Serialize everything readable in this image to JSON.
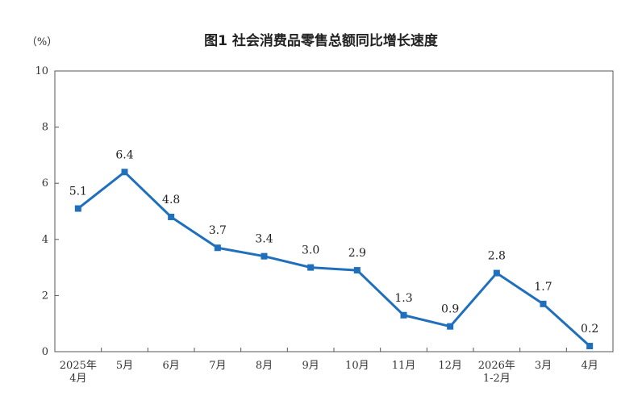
{
  "chart_data": {
    "type": "line",
    "title": "图1  社会消费品零售总额同比增长速度",
    "ylabel": "（%）",
    "ylim": [
      0,
      10
    ],
    "yticks": [
      0,
      2,
      4,
      6,
      8,
      10
    ],
    "categories": [
      [
        "2025年",
        "4月"
      ],
      [
        "5月"
      ],
      [
        "6月"
      ],
      [
        "7月"
      ],
      [
        "8月"
      ],
      [
        "9月"
      ],
      [
        "10月"
      ],
      [
        "11月"
      ],
      [
        "12月"
      ],
      [
        "2026年",
        "1-2月"
      ],
      [
        "3月"
      ],
      [
        "4月"
      ]
    ],
    "series": [
      {
        "values": [
          5.1,
          6.4,
          4.8,
          3.7,
          3.4,
          3.0,
          2.9,
          1.3,
          0.9,
          2.8,
          1.7,
          0.2
        ],
        "labels": [
          "5.1",
          "6.4",
          "4.8",
          "3.7",
          "3.4",
          "3.0",
          "2.9",
          "1.3",
          "0.9",
          "2.8",
          "1.7",
          "0.2"
        ]
      }
    ],
    "grid": false,
    "line_color": "#1f6fbd"
  }
}
